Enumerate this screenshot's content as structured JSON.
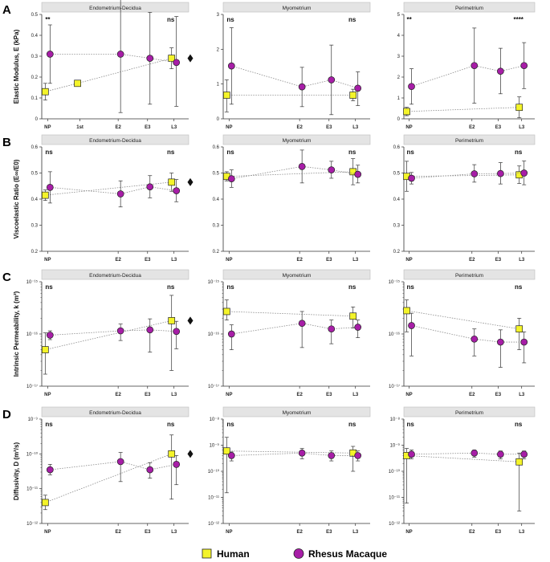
{
  "colors": {
    "human": "#f4f42a",
    "rhesus": "#a71ea7",
    "axis": "#333333",
    "header_bg": "#e4e4e4",
    "grid_line": "#8a8a8a"
  },
  "legend": {
    "human_label": "Human",
    "rhesus_label": "Rhesus Macaque"
  },
  "chart_data": [
    {
      "row": 0,
      "col": 0,
      "row_letter": "A",
      "title": "Endometrium-Decidua",
      "ylabel": "Elastic Modulus, E (kPa)",
      "scale": "linear",
      "ylim": [
        0,
        0.5
      ],
      "yticks": [
        0,
        0.1,
        0.2,
        0.3,
        0.4,
        0.5
      ],
      "categories": [
        "NP",
        "1st",
        "E2",
        "E3",
        "L3"
      ],
      "sig_left": "**",
      "sig_right": "ns",
      "diamond": true,
      "human": [
        {
          "x": "NP",
          "y": 0.13,
          "lo": 0.09,
          "hi": 0.17
        },
        {
          "x": "1st",
          "y": 0.17
        },
        {
          "x": "L3",
          "y": 0.29,
          "lo": 0.24,
          "hi": 0.34
        }
      ],
      "rhesus": [
        {
          "x": "NP",
          "y": 0.31,
          "lo": 0.17,
          "hi": 0.45
        },
        {
          "x": "E2",
          "y": 0.31,
          "lo": 0.03,
          "hi": 0.59
        },
        {
          "x": "E3",
          "y": 0.29,
          "lo": 0.07,
          "hi": 0.51
        },
        {
          "x": "L3",
          "y": 0.27,
          "lo": 0.06,
          "hi": 0.49
        }
      ]
    },
    {
      "row": 0,
      "col": 1,
      "title": "Myometrium",
      "scale": "linear",
      "ylim": [
        0,
        3
      ],
      "yticks": [
        0,
        1,
        2,
        3
      ],
      "categories": [
        "NP",
        "E2",
        "E3",
        "L3"
      ],
      "sig_left": "ns",
      "sig_right": "ns",
      "diamond": false,
      "human": [
        {
          "x": "NP",
          "y": 0.68,
          "lo": 0.2,
          "hi": 1.12
        },
        {
          "x": "L3",
          "y": 0.68,
          "lo": 0.52,
          "hi": 0.85
        }
      ],
      "rhesus": [
        {
          "x": "NP",
          "y": 1.52,
          "lo": 0.42,
          "hi": 2.62
        },
        {
          "x": "E2",
          "y": 0.92,
          "lo": 0.35,
          "hi": 1.48
        },
        {
          "x": "E3",
          "y": 1.12,
          "lo": 0.12,
          "hi": 2.12
        },
        {
          "x": "L3",
          "y": 0.88,
          "lo": 0.38,
          "hi": 1.35
        }
      ]
    },
    {
      "row": 0,
      "col": 2,
      "title": "Perimetrium",
      "scale": "linear",
      "ylim": [
        0,
        5
      ],
      "yticks": [
        0,
        1,
        2,
        3,
        4,
        5
      ],
      "categories": [
        "NP",
        "E2",
        "E3",
        "L3"
      ],
      "sig_left": "**",
      "sig_right": "****",
      "diamond": false,
      "human": [
        {
          "x": "NP",
          "y": 0.35,
          "lo": 0.15,
          "hi": 0.55
        },
        {
          "x": "L3",
          "y": 0.55,
          "lo": 0.05,
          "hi": 1.05
        }
      ],
      "rhesus": [
        {
          "x": "NP",
          "y": 1.55,
          "lo": 0.7,
          "hi": 2.4
        },
        {
          "x": "E2",
          "y": 2.55,
          "lo": 0.75,
          "hi": 4.35
        },
        {
          "x": "E3",
          "y": 2.28,
          "lo": 1.2,
          "hi": 3.38
        },
        {
          "x": "L3",
          "y": 2.55,
          "lo": 1.45,
          "hi": 3.65
        }
      ]
    },
    {
      "row": 1,
      "col": 0,
      "row_letter": "B",
      "title": "Endometrium-Decidua",
      "ylabel": "Viscoelastic Ratio (E∞/E0)",
      "scale": "linear",
      "ylim": [
        0.2,
        0.6
      ],
      "yticks": [
        0.2,
        0.3,
        0.4,
        0.5,
        0.6
      ],
      "categories": [
        "NP",
        "E2",
        "E3",
        "L3"
      ],
      "sig_left": "ns",
      "sig_right": "ns",
      "diamond": true,
      "human": [
        {
          "x": "NP",
          "y": 0.415,
          "lo": 0.395,
          "hi": 0.435
        },
        {
          "x": "L3",
          "y": 0.465,
          "lo": 0.43,
          "hi": 0.5
        }
      ],
      "rhesus": [
        {
          "x": "NP",
          "y": 0.445,
          "lo": 0.385,
          "hi": 0.505
        },
        {
          "x": "E2",
          "y": 0.42,
          "lo": 0.37,
          "hi": 0.47
        },
        {
          "x": "E3",
          "y": 0.447,
          "lo": 0.405,
          "hi": 0.49
        },
        {
          "x": "L3",
          "y": 0.432,
          "lo": 0.39,
          "hi": 0.475
        }
      ]
    },
    {
      "row": 1,
      "col": 1,
      "title": "Myometrium",
      "scale": "linear",
      "ylim": [
        0.2,
        0.6
      ],
      "yticks": [
        0.2,
        0.3,
        0.4,
        0.5,
        0.6
      ],
      "categories": [
        "NP",
        "E2",
        "E3",
        "L3"
      ],
      "sig_left": "ns",
      "sig_right": "ns",
      "diamond": false,
      "human": [
        {
          "x": "NP",
          "y": 0.487,
          "lo": 0.47,
          "hi": 0.505
        },
        {
          "x": "L3",
          "y": 0.505,
          "lo": 0.455,
          "hi": 0.555
        }
      ],
      "rhesus": [
        {
          "x": "NP",
          "y": 0.478,
          "lo": 0.445,
          "hi": 0.512
        },
        {
          "x": "E2",
          "y": 0.525,
          "lo": 0.462,
          "hi": 0.588
        },
        {
          "x": "E3",
          "y": 0.512,
          "lo": 0.48,
          "hi": 0.545
        },
        {
          "x": "L3",
          "y": 0.495,
          "lo": 0.462,
          "hi": 0.53
        }
      ]
    },
    {
      "row": 1,
      "col": 2,
      "title": "Perimetrium",
      "scale": "linear",
      "ylim": [
        0.2,
        0.6
      ],
      "yticks": [
        0.2,
        0.3,
        0.4,
        0.5,
        0.6
      ],
      "categories": [
        "NP",
        "E2",
        "E3",
        "L3"
      ],
      "sig_left": "ns",
      "sig_right": "ns",
      "diamond": false,
      "human": [
        {
          "x": "NP",
          "y": 0.487,
          "lo": 0.43,
          "hi": 0.545
        },
        {
          "x": "L3",
          "y": 0.493,
          "lo": 0.46,
          "hi": 0.527
        }
      ],
      "rhesus": [
        {
          "x": "NP",
          "y": 0.48,
          "lo": 0.458,
          "hi": 0.502
        },
        {
          "x": "E2",
          "y": 0.497,
          "lo": 0.465,
          "hi": 0.532
        },
        {
          "x": "E3",
          "y": 0.498,
          "lo": 0.458,
          "hi": 0.54
        },
        {
          "x": "L3",
          "y": 0.5,
          "lo": 0.455,
          "hi": 0.546
        }
      ]
    },
    {
      "row": 2,
      "col": 0,
      "row_letter": "C",
      "title": "Endometrium-Decidua",
      "ylabel": "Intrinsic Permeability, k (m²)",
      "scale": "log",
      "ylim": [
        -17,
        -15
      ],
      "yticks": [
        -17,
        -16,
        -15
      ],
      "tick_labels": [
        "10⁻¹⁷",
        "10⁻¹⁶",
        "10⁻¹⁵"
      ],
      "categories": [
        "NP",
        "E2",
        "E3",
        "L3"
      ],
      "sig_left": "ns",
      "sig_right": "ns",
      "diamond": true,
      "human": [
        {
          "x": "NP",
          "y": 5e-17,
          "lo": 1.7e-17,
          "hi": 1.05e-16
        },
        {
          "x": "L3",
          "y": 1.8e-16,
          "lo": 2e-17,
          "hi": 5.5e-16
        }
      ],
      "rhesus": [
        {
          "x": "NP",
          "y": 9.5e-17,
          "lo": 7.8e-17,
          "hi": 1.15e-16
        },
        {
          "x": "E2",
          "y": 1.15e-16,
          "lo": 7.5e-17,
          "hi": 1.55e-16
        },
        {
          "x": "E3",
          "y": 1.2e-16,
          "lo": 4.5e-17,
          "hi": 1.95e-16
        },
        {
          "x": "L3",
          "y": 1.12e-16,
          "lo": 5.2e-17,
          "hi": 1.75e-16
        }
      ]
    },
    {
      "row": 2,
      "col": 1,
      "title": "Myometrium",
      "scale": "log",
      "ylim": [
        -17,
        -15
      ],
      "yticks": [
        -17,
        -16,
        -15
      ],
      "tick_labels": [
        "10⁻¹⁷",
        "10⁻¹⁶",
        "10⁻¹⁵"
      ],
      "categories": [
        "NP",
        "E2",
        "E3",
        "L3"
      ],
      "sig_left": "ns",
      "sig_right": "ns",
      "diamond": false,
      "human": [
        {
          "x": "NP",
          "y": 2.7e-16,
          "lo": 1.85e-16,
          "hi": 4.5e-16
        },
        {
          "x": "L3",
          "y": 2.2e-16,
          "lo": 1.3e-16,
          "hi": 3.3e-16
        }
      ],
      "rhesus": [
        {
          "x": "NP",
          "y": 1e-16,
          "lo": 5e-17,
          "hi": 1.5e-16
        },
        {
          "x": "E2",
          "y": 1.6e-16,
          "lo": 5.5e-17,
          "hi": 2.7e-16
        },
        {
          "x": "E3",
          "y": 1.25e-16,
          "lo": 6.5e-17,
          "hi": 1.85e-16
        },
        {
          "x": "L3",
          "y": 1.35e-16,
          "lo": 8.5e-17,
          "hi": 1.85e-16
        }
      ]
    },
    {
      "row": 2,
      "col": 2,
      "title": "Perimetrium",
      "scale": "log",
      "ylim": [
        -17,
        -15
      ],
      "yticks": [
        -17,
        -16,
        -15
      ],
      "tick_labels": [
        "10⁻¹⁷",
        "10⁻¹⁶",
        "10⁻¹⁵"
      ],
      "categories": [
        "NP",
        "E2",
        "E3",
        "L3"
      ],
      "sig_left": "ns",
      "sig_right": "ns",
      "diamond": false,
      "human": [
        {
          "x": "NP",
          "y": 2.8e-16,
          "lo": 1.1e-16,
          "hi": 4.5e-16
        },
        {
          "x": "L3",
          "y": 1.25e-16,
          "lo": 5e-17,
          "hi": 2e-16
        }
      ],
      "rhesus": [
        {
          "x": "NP",
          "y": 1.45e-16,
          "lo": 3.8e-17,
          "hi": 2.5e-16
        },
        {
          "x": "E2",
          "y": 8e-17,
          "lo": 3.8e-17,
          "hi": 1.25e-16
        },
        {
          "x": "E3",
          "y": 7e-17,
          "lo": 2.3e-17,
          "hi": 1.2e-16
        },
        {
          "x": "L3",
          "y": 7e-17,
          "lo": 2.8e-17,
          "hi": 1.1e-16
        }
      ]
    },
    {
      "row": 3,
      "col": 0,
      "row_letter": "D",
      "title": "Endometrium-Decidua",
      "ylabel": "Diffusivity, D (m²/s)",
      "scale": "log",
      "ylim": [
        -12,
        -9
      ],
      "yticks": [
        -12,
        -11,
        -10,
        -9
      ],
      "tick_labels": [
        "10⁻¹²",
        "10⁻¹¹",
        "10⁻¹⁰",
        "10⁻⁹"
      ],
      "categories": [
        "NP",
        "E2",
        "E3",
        "L3"
      ],
      "sig_left": "ns",
      "sig_right": "ns",
      "diamond": true,
      "human": [
        {
          "x": "NP",
          "y": 4e-12,
          "lo": 2.5e-12,
          "hi": 6.5e-12
        },
        {
          "x": "L3",
          "y": 1e-10,
          "lo": 5e-12,
          "hi": 3.5e-10
        }
      ],
      "rhesus": [
        {
          "x": "NP",
          "y": 3.5e-11,
          "lo": 2.5e-11,
          "hi": 5e-11
        },
        {
          "x": "E2",
          "y": 6e-11,
          "lo": 1.6e-11,
          "hi": 1.1e-10
        },
        {
          "x": "E3",
          "y": 3.5e-11,
          "lo": 2e-11,
          "hi": 5.5e-11
        },
        {
          "x": "L3",
          "y": 5e-11,
          "lo": 1.3e-11,
          "hi": 9e-11
        }
      ]
    },
    {
      "row": 3,
      "col": 1,
      "title": "Myometrium",
      "scale": "log",
      "ylim": [
        -12,
        -8
      ],
      "yticks": [
        -12,
        -11,
        -10,
        -9,
        -8
      ],
      "tick_labels": [
        "10⁻¹²",
        "10⁻¹¹",
        "10⁻¹⁰",
        "10⁻⁹",
        "10⁻⁸"
      ],
      "categories": [
        "NP",
        "E2",
        "E3",
        "L3"
      ],
      "sig_left": "ns",
      "sig_right": "ns",
      "diamond": false,
      "human": [
        {
          "x": "NP",
          "y": 6e-10,
          "lo": 1.5e-11,
          "hi": 2e-09
        },
        {
          "x": "L3",
          "y": 5e-10,
          "lo": 1e-10,
          "hi": 9e-10
        }
      ],
      "rhesus": [
        {
          "x": "NP",
          "y": 4e-10,
          "lo": 2.5e-10,
          "hi": 5.5e-10
        },
        {
          "x": "E2",
          "y": 5e-10,
          "lo": 3e-10,
          "hi": 7.5e-10
        },
        {
          "x": "E3",
          "y": 4e-10,
          "lo": 2.5e-10,
          "hi": 6e-10
        },
        {
          "x": "L3",
          "y": 4e-10,
          "lo": 2.5e-10,
          "hi": 6e-10
        }
      ]
    },
    {
      "row": 3,
      "col": 2,
      "title": "Perimetrium",
      "scale": "log",
      "ylim": [
        -12,
        -8
      ],
      "yticks": [
        -12,
        -11,
        -10,
        -9,
        -8
      ],
      "tick_labels": [
        "10⁻¹²",
        "10⁻¹¹",
        "10⁻¹⁰",
        "10⁻⁹",
        "10⁻⁸"
      ],
      "categories": [
        "NP",
        "E2",
        "E3",
        "L3"
      ],
      "sig_left": "ns",
      "sig_right": "ns",
      "diamond": false,
      "human": [
        {
          "x": "NP",
          "y": 4e-10,
          "lo": 6e-12,
          "hi": 7.5e-10
        },
        {
          "x": "L3",
          "y": 2.3e-10,
          "lo": 3e-12,
          "hi": 5e-10
        }
      ],
      "rhesus": [
        {
          "x": "NP",
          "y": 4.5e-10,
          "lo": 3e-10,
          "hi": 6.5e-10
        },
        {
          "x": "E2",
          "y": 5e-10,
          "lo": 3.5e-10,
          "hi": 6.5e-10
        },
        {
          "x": "E3",
          "y": 4.5e-10,
          "lo": 3e-10,
          "hi": 6e-10
        },
        {
          "x": "L3",
          "y": 4.5e-10,
          "lo": 3e-10,
          "hi": 6e-10
        }
      ]
    }
  ]
}
